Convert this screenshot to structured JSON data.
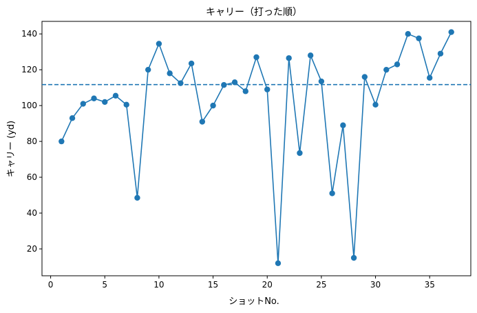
{
  "chart_data": {
    "type": "line",
    "title": "キャリー（打った順）",
    "xlabel": "ショットNo.",
    "ylabel": "キャリー (yd)",
    "xlim": [
      -0.8,
      38.8
    ],
    "ylim": [
      5,
      147
    ],
    "xticks": [
      0,
      5,
      10,
      15,
      20,
      25,
      30,
      35
    ],
    "yticks": [
      20,
      40,
      60,
      80,
      100,
      120,
      140
    ],
    "grid": false,
    "series": [
      {
        "color": "#1f77b4",
        "marker": "circle",
        "x": [
          1,
          2,
          3,
          4,
          5,
          6,
          7,
          8,
          9,
          10,
          11,
          12,
          13,
          14,
          15,
          16,
          17,
          18,
          19,
          20,
          21,
          22,
          23,
          24,
          25,
          26,
          27,
          28,
          29,
          30,
          31,
          32,
          33,
          34,
          35,
          36,
          37
        ],
        "values": [
          80,
          93,
          101,
          104,
          102,
          105.5,
          100.5,
          48.5,
          120,
          134.5,
          118,
          112.5,
          123.5,
          91,
          100,
          111.5,
          113,
          108,
          127,
          109,
          12,
          126.5,
          73.5,
          128,
          113.5,
          51,
          89,
          15,
          116,
          100.5,
          120,
          123,
          140,
          137.5,
          115.5,
          129,
          141
        ]
      }
    ],
    "reference_line": {
      "y": 111.7,
      "style": "dashed",
      "color": "#1f77b4"
    }
  }
}
